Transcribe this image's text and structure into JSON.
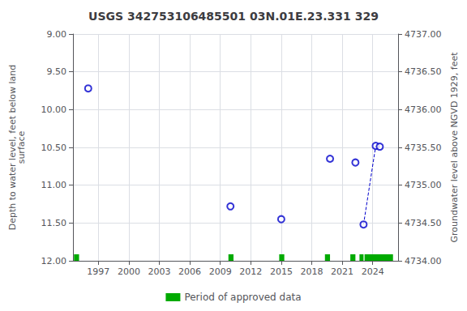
{
  "chart_data": {
    "type": "scatter",
    "title": "USGS 342753106485501 03N.01E.23.331 329",
    "ylabel": "Depth to water level, feet below land\nsurface",
    "y2label": "Groundwater level above NGVD 1929, feet",
    "xlim": [
      1994.5,
      2026.5
    ],
    "xticks": [
      1997,
      2000,
      2003,
      2006,
      2009,
      2012,
      2015,
      2018,
      2021,
      2024
    ],
    "ylim": [
      12.0,
      9.0
    ],
    "yticks": [
      {
        "value": 9.0,
        "label": "9.00"
      },
      {
        "value": 9.5,
        "label": "9.50"
      },
      {
        "value": 10.0,
        "label": "10.00"
      },
      {
        "value": 10.5,
        "label": "10.50"
      },
      {
        "value": 11.0,
        "label": "11.00"
      },
      {
        "value": 11.5,
        "label": "11.50"
      },
      {
        "value": 12.0,
        "label": "12.00"
      }
    ],
    "y2lim": [
      4734.0,
      4737.0
    ],
    "y2ticks": [
      {
        "value": 4734.0,
        "label": "4734.00"
      },
      {
        "value": 4734.5,
        "label": "4734.50"
      },
      {
        "value": 4735.0,
        "label": "4735.00"
      },
      {
        "value": 4735.5,
        "label": "4735.50"
      },
      {
        "value": 4736.0,
        "label": "4736.00"
      },
      {
        "value": 4736.5,
        "label": "4736.50"
      },
      {
        "value": 4737.0,
        "label": "4737.00"
      }
    ],
    "grid": true,
    "legend": "bottom",
    "series": [
      {
        "type": "scatter",
        "marker": "open_circle",
        "color": "#0000cc",
        "x": [
          1996.0,
          2010.0,
          2015.0,
          2019.8,
          2022.3,
          2023.1,
          2024.3,
          2024.7
        ],
        "values": [
          9.72,
          11.28,
          11.45,
          10.65,
          10.7,
          11.52,
          10.48,
          10.49
        ]
      },
      {
        "type": "line",
        "line_style": "dashed",
        "color": "#0000cc",
        "x": [
          2023.1,
          2024.3,
          2024.7
        ],
        "values": [
          11.52,
          10.48,
          10.49
        ]
      },
      {
        "name": "Period of approved data",
        "type": "span",
        "color": "#00aa00",
        "x": [
          1994.6,
          2009.8,
          2014.8,
          2019.3,
          2021.8,
          2022.7,
          2023.2
        ],
        "widths": [
          0.5,
          0.5,
          0.5,
          0.5,
          0.5,
          0.4,
          2.8
        ]
      }
    ]
  }
}
